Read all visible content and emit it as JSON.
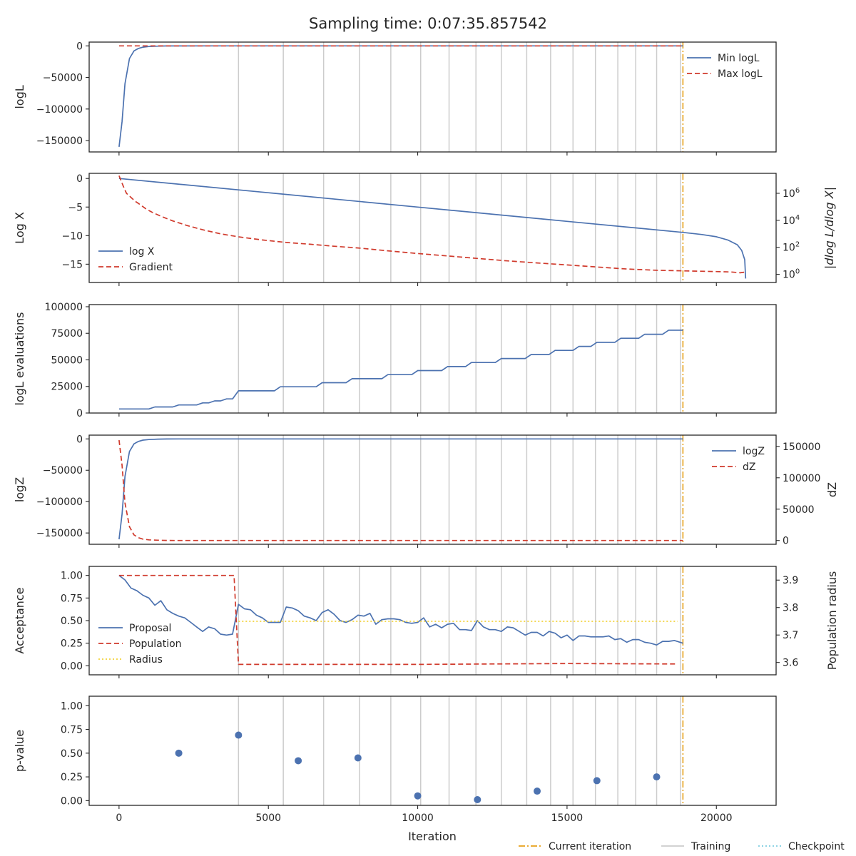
{
  "title": "Sampling time: 0:07:35.857542",
  "colors": {
    "blue": "#4c72b0",
    "red": "#d03a2c",
    "orange": "#e7a019",
    "gold": "#f3d23b",
    "training": "#cccccc",
    "checkpoint": "#7fcde0",
    "axis": "#262626"
  },
  "xaxis": {
    "label": "Iteration",
    "lim": [
      -1000,
      22000
    ],
    "ticks": [
      0,
      5000,
      10000,
      15000,
      20000
    ],
    "tick_labels": [
      "0",
      "5000",
      "10000",
      "15000",
      "20000"
    ]
  },
  "markers": {
    "current_iteration": 18880,
    "training_iterations": [
      4000,
      5500,
      6850,
      8050,
      9100,
      10100,
      11050,
      11950,
      12800,
      13650,
      14450,
      15200,
      15950,
      16700,
      17300,
      18000,
      18800
    ]
  },
  "figure_legend": [
    {
      "label": "Current iteration",
      "style": "dashdot",
      "color": "#e7a019"
    },
    {
      "label": "Training",
      "style": "solid",
      "color": "#cccccc"
    },
    {
      "label": "Checkpoint",
      "style": "dotted",
      "color": "#7fcde0"
    }
  ],
  "chart_data": [
    {
      "type": "line",
      "ylabel": "logL",
      "ylim": [
        -168000,
        6000
      ],
      "yticks": [
        0,
        -50000,
        -100000,
        -150000
      ],
      "ytick_labels": [
        "0",
        "−50000",
        "−100000",
        "−150000"
      ],
      "legend": "top-right",
      "series": [
        {
          "name": "Min logL",
          "style": "solid",
          "color": "#4c72b0",
          "x": [
            0,
            100,
            200,
            350,
            500,
            650,
            800,
            1000,
            1300,
            1600,
            2000,
            3000,
            5000,
            10000,
            15000,
            18880
          ],
          "y": [
            -160000,
            -120000,
            -60000,
            -20000,
            -8000,
            -4000,
            -2000,
            -1000,
            -400,
            -150,
            -50,
            -10,
            -2,
            0,
            0,
            0
          ]
        },
        {
          "name": "Max logL",
          "style": "dashed",
          "color": "#d03a2c",
          "x": [
            0,
            18880
          ],
          "y": [
            0,
            0
          ]
        }
      ]
    },
    {
      "type": "line",
      "ylabel": "Log X",
      "ylim": [
        -18.2,
        0.9
      ],
      "yticks": [
        0,
        -5,
        -10,
        -15
      ],
      "ytick_labels": [
        "0",
        "−5",
        "−10",
        "−15"
      ],
      "y2label": "|dlog L/dlog X|",
      "y2scale": "log",
      "y2ticks": [
        1,
        100,
        10000,
        1000000
      ],
      "y2tick_labels": [
        "10^0",
        "10^2",
        "10^4",
        "10^6"
      ],
      "legend": "bottom-left",
      "series": [
        {
          "name": "log X",
          "style": "solid",
          "color": "#4c72b0",
          "axis": "left",
          "x": [
            0,
            5000,
            10000,
            15000,
            18880,
            19500,
            20000,
            20400,
            20700,
            20850,
            20950,
            20980
          ],
          "y": [
            0,
            -2.5,
            -5.0,
            -7.5,
            -9.44,
            -9.8,
            -10.2,
            -10.8,
            -11.6,
            -12.6,
            -14.2,
            -17.5
          ]
        },
        {
          "name": "Gradient",
          "style": "dashed",
          "color": "#d03a2c",
          "axis": "right",
          "x": [
            0,
            150,
            250,
            400,
            550,
            700,
            900,
            1100,
            1400,
            1800,
            2300,
            2800,
            3400,
            4000,
            4800,
            5600,
            6400,
            7200,
            8000,
            9000,
            10000,
            11000,
            12000,
            13000,
            14000,
            15000,
            16000,
            17000,
            18000,
            19000,
            20000,
            20500,
            20800,
            20980
          ],
          "y": [
            20000000,
            3000000,
            1000000,
            500000,
            250000,
            150000,
            70000,
            40000,
            20000,
            9000,
            4000,
            2000,
            1000,
            600,
            350,
            230,
            170,
            120,
            90,
            55,
            35,
            23,
            15,
            10,
            7,
            5,
            3.5,
            2.5,
            2,
            1.8,
            1.6,
            1.5,
            1.3,
            1.5
          ]
        }
      ]
    },
    {
      "type": "line",
      "ylabel": "logL evaluations",
      "ylim": [
        0,
        102000
      ],
      "yticks": [
        0,
        25000,
        50000,
        75000,
        100000
      ],
      "ytick_labels": [
        "0",
        "25000",
        "50000",
        "75000",
        "100000"
      ],
      "series": [
        {
          "name": "",
          "style": "solid",
          "color": "#4c72b0",
          "x": [
            0,
            1000,
            1200,
            1800,
            2000,
            2600,
            2800,
            3000,
            3200,
            3400,
            3600,
            3800,
            4000,
            5200,
            5400,
            6600,
            6800,
            7600,
            7800,
            8800,
            9000,
            9800,
            10000,
            10800,
            11000,
            11600,
            11800,
            12600,
            12800,
            13600,
            13800,
            14400,
            14600,
            15200,
            15400,
            15800,
            16000,
            16600,
            16800,
            17400,
            17600,
            18200,
            18400,
            18880
          ],
          "y": [
            3800,
            3800,
            5700,
            5700,
            7600,
            7600,
            9500,
            9500,
            11400,
            11400,
            13300,
            13300,
            20900,
            20900,
            24700,
            24700,
            28500,
            28500,
            32300,
            32300,
            36100,
            36100,
            39900,
            39900,
            43700,
            43700,
            47500,
            47500,
            51300,
            51300,
            55100,
            55100,
            58900,
            58900,
            62700,
            62700,
            66500,
            66500,
            70300,
            70300,
            74100,
            74100,
            77900,
            77900
          ]
        }
      ]
    },
    {
      "type": "line",
      "ylabel": "logZ",
      "ylim": [
        -168000,
        6000
      ],
      "yticks": [
        0,
        -50000,
        -100000,
        -150000
      ],
      "ytick_labels": [
        "0",
        "−50000",
        "−100000",
        "−150000"
      ],
      "y2label": "dZ",
      "y2lim": [
        -6000,
        168000
      ],
      "y2ticks": [
        0,
        50000,
        100000,
        150000
      ],
      "y2tick_labels": [
        "0",
        "50000",
        "100000",
        "150000"
      ],
      "legend": "top-right",
      "series": [
        {
          "name": "logZ",
          "style": "solid",
          "color": "#4c72b0",
          "axis": "left",
          "x": [
            0,
            100,
            200,
            350,
            500,
            650,
            800,
            1000,
            1300,
            1600,
            2000,
            3000,
            5000,
            10000,
            18880
          ],
          "y": [
            -160000,
            -120000,
            -60000,
            -20000,
            -8000,
            -4000,
            -2000,
            -1000,
            -400,
            -150,
            -50,
            -10,
            -2,
            0,
            0
          ]
        },
        {
          "name": "dZ",
          "style": "dashed",
          "color": "#d03a2c",
          "axis": "right",
          "x": [
            0,
            100,
            200,
            350,
            500,
            650,
            800,
            1000,
            1300,
            1600,
            2000,
            3000,
            5000,
            10000,
            18880
          ],
          "y": [
            160000,
            120000,
            60000,
            22000,
            9000,
            4500,
            2200,
            1100,
            450,
            180,
            60,
            12,
            3,
            0,
            0
          ]
        }
      ]
    },
    {
      "type": "line",
      "ylabel": "Acceptance",
      "ylim": [
        -0.1,
        1.1
      ],
      "yticks": [
        0,
        0.25,
        0.5,
        0.75,
        1.0
      ],
      "ytick_labels": [
        "0.00",
        "0.25",
        "0.50",
        "0.75",
        "1.00"
      ],
      "y2label": "Population radius",
      "y2lim": [
        3.555,
        3.95
      ],
      "y2ticks": [
        3.6,
        3.7,
        3.8,
        3.9
      ],
      "y2tick_labels": [
        "3.6",
        "3.7",
        "3.8",
        "3.9"
      ],
      "legend": "bottom-left",
      "series": [
        {
          "name": "Proposal",
          "style": "solid",
          "color": "#4c72b0",
          "axis": "left",
          "x": [
            0,
            200,
            400,
            600,
            800,
            1000,
            1200,
            1400,
            1600,
            1800,
            2000,
            2200,
            2400,
            2600,
            2800,
            3000,
            3200,
            3400,
            3600,
            3800,
            4000,
            4200,
            4400,
            4600,
            4800,
            5000,
            5200,
            5400,
            5600,
            5800,
            6000,
            6200,
            6400,
            6600,
            6800,
            7000,
            7200,
            7400,
            7600,
            7800,
            8000,
            8200,
            8400,
            8600,
            8800,
            9000,
            9200,
            9400,
            9600,
            9800,
            10000,
            10200,
            10400,
            10600,
            10800,
            11000,
            11200,
            11400,
            11600,
            11800,
            12000,
            12200,
            12400,
            12600,
            12800,
            13000,
            13200,
            13400,
            13600,
            13800,
            14000,
            14200,
            14400,
            14600,
            14800,
            15000,
            15200,
            15400,
            15600,
            15800,
            16000,
            16200,
            16400,
            16600,
            16800,
            17000,
            17200,
            17400,
            17600,
            17800,
            18000,
            18200,
            18400,
            18600,
            18880
          ],
          "y": [
            1.0,
            0.95,
            0.86,
            0.83,
            0.78,
            0.75,
            0.67,
            0.72,
            0.62,
            0.58,
            0.55,
            0.53,
            0.48,
            0.43,
            0.38,
            0.43,
            0.41,
            0.35,
            0.34,
            0.35,
            0.68,
            0.63,
            0.62,
            0.56,
            0.53,
            0.48,
            0.48,
            0.48,
            0.65,
            0.64,
            0.61,
            0.55,
            0.53,
            0.5,
            0.59,
            0.62,
            0.57,
            0.5,
            0.48,
            0.51,
            0.56,
            0.55,
            0.58,
            0.46,
            0.51,
            0.52,
            0.52,
            0.51,
            0.48,
            0.47,
            0.48,
            0.53,
            0.43,
            0.46,
            0.42,
            0.46,
            0.47,
            0.4,
            0.4,
            0.39,
            0.5,
            0.43,
            0.4,
            0.4,
            0.38,
            0.43,
            0.42,
            0.38,
            0.34,
            0.37,
            0.37,
            0.33,
            0.38,
            0.36,
            0.31,
            0.34,
            0.28,
            0.33,
            0.33,
            0.32,
            0.32,
            0.32,
            0.33,
            0.29,
            0.3,
            0.26,
            0.29,
            0.29,
            0.26,
            0.25,
            0.23,
            0.27,
            0.27,
            0.28,
            0.25
          ]
        },
        {
          "name": "Population",
          "style": "dashed",
          "color": "#d03a2c",
          "axis": "left",
          "x": [
            0,
            3850,
            4000,
            10000,
            15000,
            18700
          ],
          "y": [
            1.0,
            1.0,
            0.015,
            0.015,
            0.025,
            0.02
          ]
        },
        {
          "name": "Radius",
          "style": "dotted",
          "color": "#f3d23b",
          "axis": "right",
          "x": [
            4000,
            18700
          ],
          "y": [
            3.75,
            3.75
          ]
        }
      ]
    },
    {
      "type": "scatter",
      "ylabel": "p-value",
      "ylim": [
        -0.05,
        1.1
      ],
      "yticks": [
        0,
        0.25,
        0.5,
        0.75,
        1.0
      ],
      "ytick_labels": [
        "0.00",
        "0.25",
        "0.50",
        "0.75",
        "1.00"
      ],
      "series": [
        {
          "name": "",
          "color": "#4c72b0",
          "x": [
            2000,
            4000,
            6000,
            8000,
            10000,
            12000,
            14000,
            16000,
            18000
          ],
          "y": [
            0.5,
            0.69,
            0.42,
            0.45,
            0.05,
            0.01,
            0.1,
            0.21,
            0.25
          ]
        }
      ]
    }
  ]
}
